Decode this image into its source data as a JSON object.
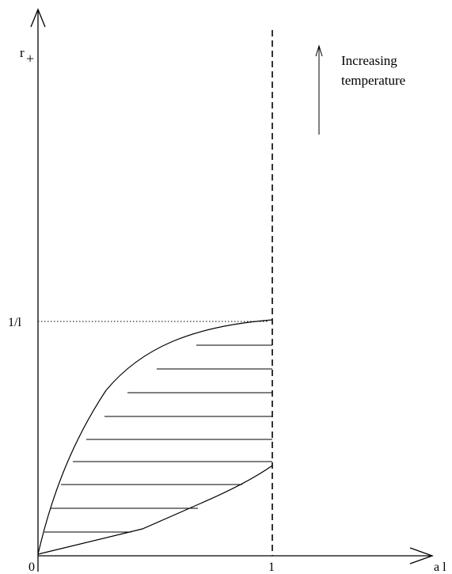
{
  "diagram": {
    "y_axis_label": "r",
    "y_axis_subscript": "+",
    "x_axis_label": "a l",
    "x_tick_0": "0",
    "x_tick_1": "1",
    "y_tick": "1/l",
    "annotation_line1": "Increasing",
    "annotation_line2": "temperature",
    "colors": {
      "ink": "#000000",
      "background": "#ffffff"
    }
  }
}
